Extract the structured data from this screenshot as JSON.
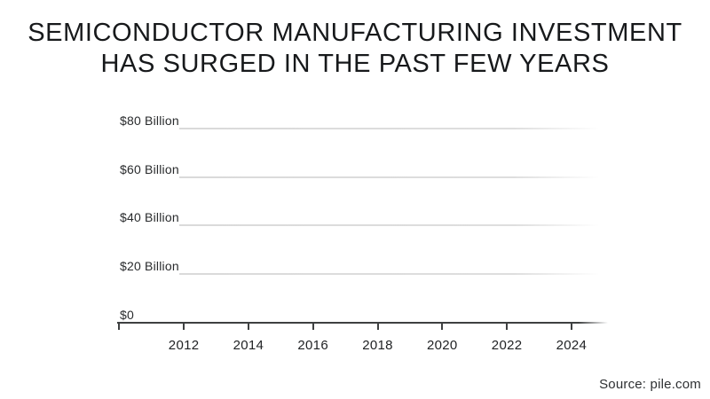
{
  "title": {
    "line1": "SEMICONDUCTOR MANUFACTURING INVESTMENT",
    "line2": "HAS SURGED IN THE PAST FEW YEARS"
  },
  "source": {
    "text": "Source: pile.com"
  },
  "colors": {
    "background": "#ffffff",
    "title_text": "#17191b",
    "axis_line": "#3e4041",
    "gridline": "#dcdcdc",
    "axis_label_text": "#292b2d",
    "source_text": "#2e3032"
  },
  "chart_data": {
    "type": "line",
    "title": "SEMICONDUCTOR MANUFACTURING INVESTMENT HAS SURGED IN THE PAST FEW YEARS",
    "series": [],
    "x_axis": {
      "tick_years": [
        2010,
        2012,
        2014,
        2016,
        2018,
        2020,
        2022,
        2024
      ],
      "tick_labels": [
        "2012",
        "2014",
        "2016",
        "2018",
        "2020",
        "2022",
        "2024"
      ],
      "label_years": [
        2012,
        2014,
        2016,
        2018,
        2020,
        2022,
        2024
      ]
    },
    "y_axis": {
      "tick_labels": [
        "$0",
        "$20 Billion",
        "$40 Billion",
        "$60 Billion",
        "$80 Billion"
      ],
      "tick_values_billions": [
        0,
        20,
        40,
        60,
        80
      ],
      "unit": "US dollars, billions"
    },
    "xlim": [
      2010,
      2025.2
    ],
    "ylim": [
      0,
      88
    ],
    "grid": true,
    "legend": false,
    "plotted_points": "none - axes rendered empty",
    "source": "Source: pile.com"
  }
}
